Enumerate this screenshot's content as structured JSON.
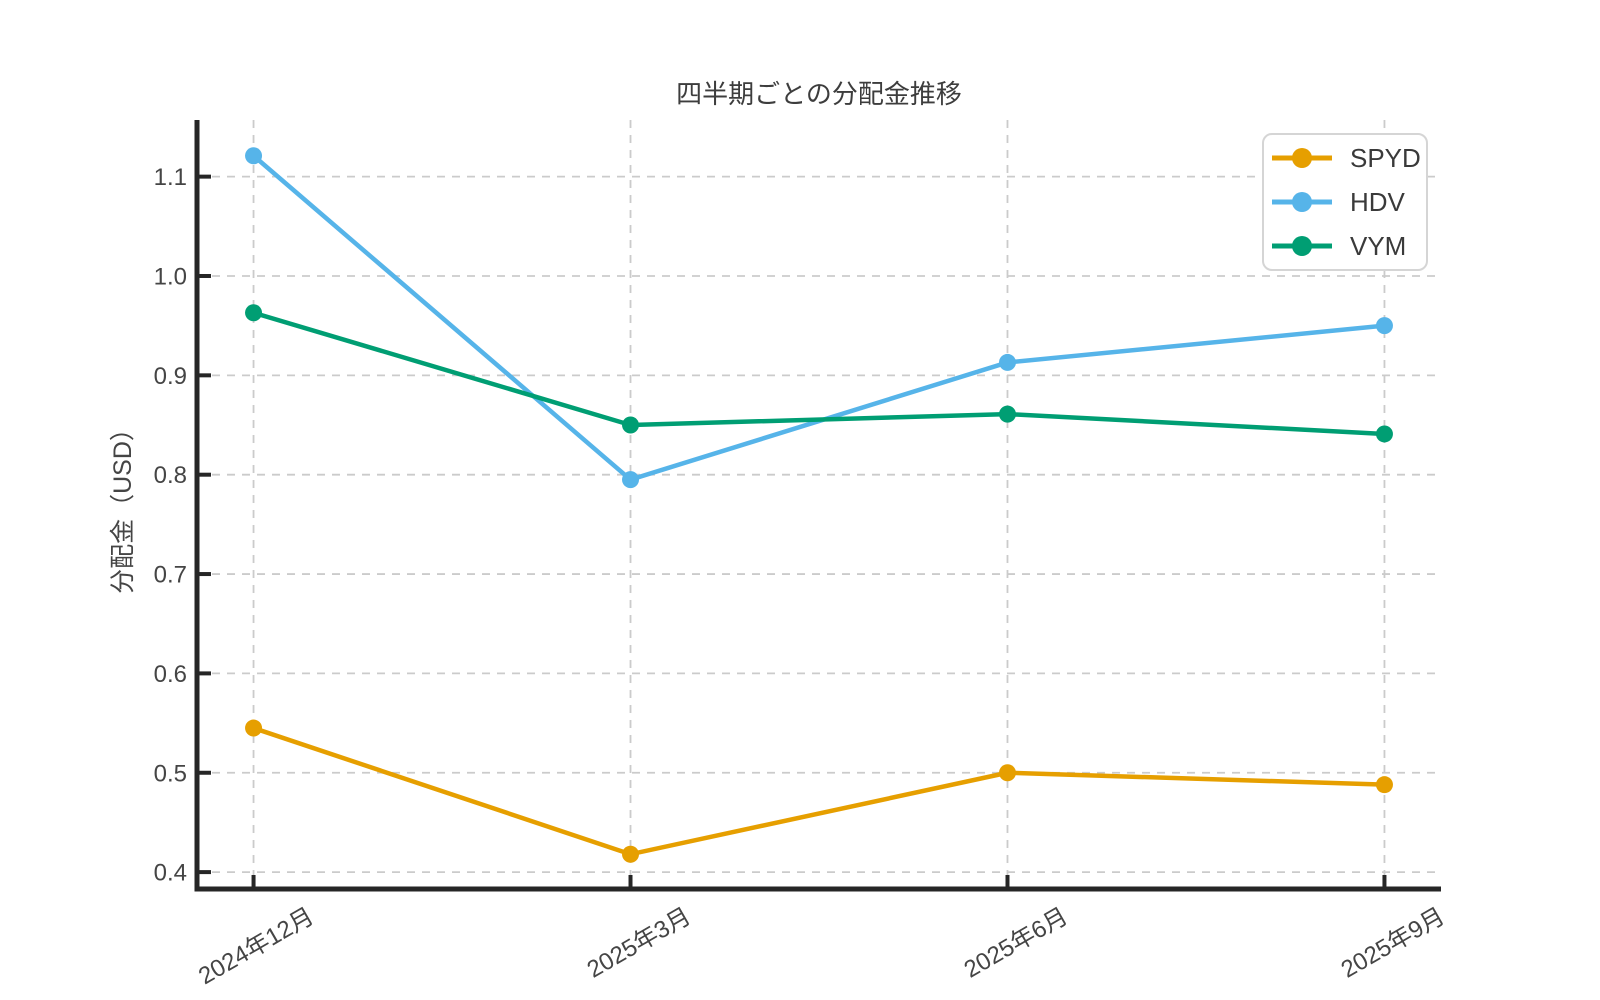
{
  "chart_data": {
    "type": "line",
    "title": "四半期ごとの分配金推移",
    "xlabel": "",
    "ylabel": "分配金（USD）",
    "categories": [
      "2024年12月",
      "2025年3月",
      "2025年6月",
      "2025年9月"
    ],
    "series": [
      {
        "name": "SPYD",
        "color": "#E69F00",
        "values": [
          0.545,
          0.418,
          0.5,
          0.488
        ]
      },
      {
        "name": "HDV",
        "color": "#56B4E9",
        "values": [
          1.121,
          0.795,
          0.913,
          0.95
        ]
      },
      {
        "name": "VYM",
        "color": "#009E73",
        "values": [
          0.963,
          0.85,
          0.861,
          0.841
        ]
      }
    ],
    "yticks": [
      0.4,
      0.5,
      0.6,
      0.7,
      0.8,
      0.9,
      1.0,
      1.1
    ],
    "ylim": [
      0.383,
      1.157
    ],
    "grid": "dashed-both-axes",
    "legend_position": "upper-right",
    "marker": "circle",
    "colors": {
      "spine": "#262626",
      "grid": "#cbcbcb",
      "title_text": "#3d3d3d",
      "tick_text": "#454545",
      "legend_border": "#d5d5d5",
      "background": "#ffffff"
    }
  }
}
